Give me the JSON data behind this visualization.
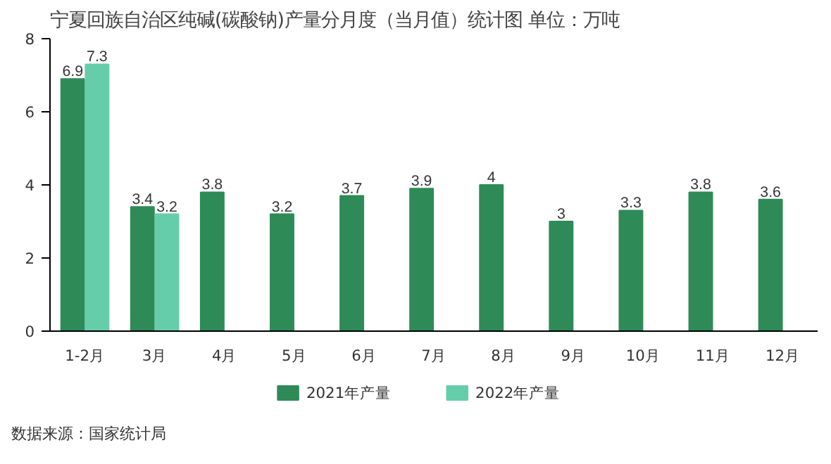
{
  "chart_data": {
    "type": "bar",
    "title": "宁夏回族自治区纯碱(碳酸钠)产量分月度（当月值）统计图 单位：万吨",
    "categories": [
      "1-2月",
      "3月",
      "4月",
      "5月",
      "6月",
      "7月",
      "8月",
      "9月",
      "10月",
      "11月",
      "12月"
    ],
    "series": [
      {
        "name": "2021年产量",
        "color": "#2e8b57",
        "values": [
          6.9,
          3.4,
          3.8,
          3.2,
          3.7,
          3.9,
          4,
          3,
          3.3,
          3.8,
          3.6
        ]
      },
      {
        "name": "2022年产量",
        "color": "#66cdaa",
        "values": [
          7.3,
          3.2,
          null,
          null,
          null,
          null,
          null,
          null,
          null,
          null,
          null
        ]
      }
    ],
    "ylim": [
      0,
      8
    ],
    "yticks": [
      0,
      2,
      4,
      6,
      8
    ],
    "grid": false,
    "legend": "bottom",
    "data_labels": true,
    "annotations": [
      "数据来源：国家统计局"
    ]
  }
}
